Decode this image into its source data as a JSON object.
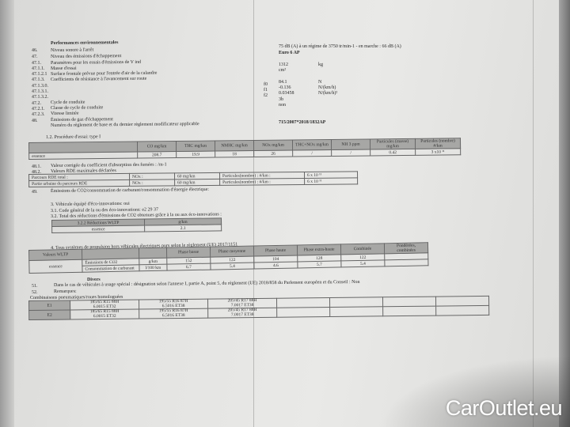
{
  "section_title": "Performances environnementales",
  "lines": [
    {
      "num": "46.",
      "label": "Niveau sonore à l'arrêt",
      "value": "75 dB (A)  à un régime de 3750 tr/min-1 - en marche :  66 dB (A)"
    },
    {
      "num": "47.",
      "label": "Niveau des émissions d'échappement",
      "value": "Euro 6 AP"
    },
    {
      "num": "47.1.",
      "label": "Paramètres pour les essais d'émissions de V ind",
      "value": ""
    },
    {
      "num": "47.1.1.",
      "label": "Masse d'essai",
      "value": "1312",
      "unit": "kg"
    },
    {
      "num": "47.1.2.1",
      "label": "Surface frontale prévue pour l'entrée d'air de la calandre",
      "value": "cm²"
    },
    {
      "num": "47.1.3.",
      "label": "Coefficients de résistance à l'avancement sur route",
      "value": ""
    },
    {
      "num": "47.1.3.0.",
      "label": "",
      "coef": "f0",
      "value": "84.1",
      "unit": "N"
    },
    {
      "num": "47.1.3.1.",
      "label": "",
      "coef": "f1",
      "value": "-0.136",
      "unit": "N/(km/h)"
    },
    {
      "num": "47.1.3.2.",
      "label": "",
      "coef": "f2",
      "value": "0.03458",
      "unit": "N/(km/h)²"
    },
    {
      "num": "47.2.",
      "label": "Cycle de conduite",
      "value": "3b"
    },
    {
      "num": "47.2.1.",
      "label": "Classe de cycle de conduite",
      "value": "non"
    },
    {
      "num": "47.2.3.",
      "label": "Vitesse limitée",
      "value": ""
    },
    {
      "num": "48.",
      "label": "Émissions de gaz d'échappement",
      "value": ""
    },
    {
      "num": "",
      "label": "Numéro du règlement de base et du dernier règlement modificateur applicable",
      "value": "715/2007*2018/1832AP"
    }
  ],
  "emissions_table": {
    "caption": "1.2. Procédure d'essai: type I",
    "headers": [
      "CO mg/km",
      "THC mg/km",
      "NMHC mg/km",
      "NOx mg/km",
      "THC+NOx mg/km",
      "NH 3 ppm",
      "Particules (masse) mg/km",
      "Particules (nombre) #/km"
    ],
    "row_label": "essence",
    "values": [
      "208.7",
      "19.9",
      "18",
      "26",
      "/",
      "/",
      "0.42",
      "3 x10 ¹¹"
    ]
  },
  "line_481": {
    "num": "48.1.",
    "label": "Valeur corrigée du coefficient d'absorption des fumées : /m-1"
  },
  "line_482": {
    "num": "48.2.",
    "label": "Valeurs RDE maximales déclarées"
  },
  "rde_rows": [
    {
      "label": "Parcours RDE total :",
      "nox": "NOx :",
      "nox_val": "60 mg/km",
      "pn": "Particules(nombre) : #/km :",
      "pn_val": "6 x 10 ¹¹"
    },
    {
      "label": "Partie urbaine du parcours RDE",
      "nox": "NOx :",
      "nox_val": "60 mg/km",
      "pn": "Particules(nombre) : #/km :",
      "pn_val": "6 x 10 ¹¹"
    }
  ],
  "line_49": {
    "num": "49.",
    "label": "Émissions de CO2/consommation de carburant/consommation d'énergie électrique:"
  },
  "eco": {
    "line3": "3. Véhicule équipé d'éco-innovations: oui",
    "line31": "3.1. Code général de la ou des éco-innovations: e2 29 37",
    "line32": "3.2. Total des réductions d'émissions de CO2 obtenues grâce à la ou aux éco-innovations :",
    "header": "3.2.2 Réductions WLTP",
    "unit": "g/km",
    "row_label": "essence",
    "value": "2.1"
  },
  "wltp": {
    "caption": "4. Tous systèmes de propulsion hors véhicules électriques purs selon le règlement (UE) 2017/1151",
    "headers": [
      "Phase basse",
      "Phase moyenne",
      "Phase haute",
      "Phase extra-haute",
      "Combinée",
      "Pondérées, combinées"
    ],
    "group_label": "Valeurs WLTP",
    "row_label": "essence",
    "rows": [
      {
        "label": "Émissions de CO2",
        "unit": "g/km",
        "values": [
          "152",
          "122",
          "104",
          "128",
          "122",
          ""
        ]
      },
      {
        "label": "Consommation de carburant",
        "unit": "l/100 km",
        "values": [
          "6.7",
          "5.4",
          "4.6",
          "5.7",
          "5.4",
          ""
        ]
      }
    ]
  },
  "divers": {
    "title": "Divers",
    "line51_num": "51.",
    "line51": "Dans le cas de véhicules à usage spécial : désignation selon l'annexe I, partie A, point 5, du règlement (UE) 2018/858 du Parlement européen et du Conseil : Non",
    "line52_num": "52.",
    "line52": "Remarques:",
    "tyres_title": "Combinaisons pneumatiques/roues homologuées",
    "tyres": [
      {
        "axle": "E1",
        "c1": "185/65 R15 88H",
        "c1b": "6.0015 ET32",
        "c2": "195/55 R16 87H",
        "c2b": "6.5016 ET38",
        "c3": "205/45 R17 88H",
        "c3b": "7.0017 ET38"
      },
      {
        "axle": "E2",
        "c1": "185/65 R15 88H",
        "c1b": "6.0015 ET32",
        "c2": "195/55 R16 87H",
        "c2b": "6.5016 ET38",
        "c3": "205/45 R17 88H",
        "c3b": "7.0017 ET38"
      }
    ]
  },
  "watermark": "CarOutlet.eu"
}
